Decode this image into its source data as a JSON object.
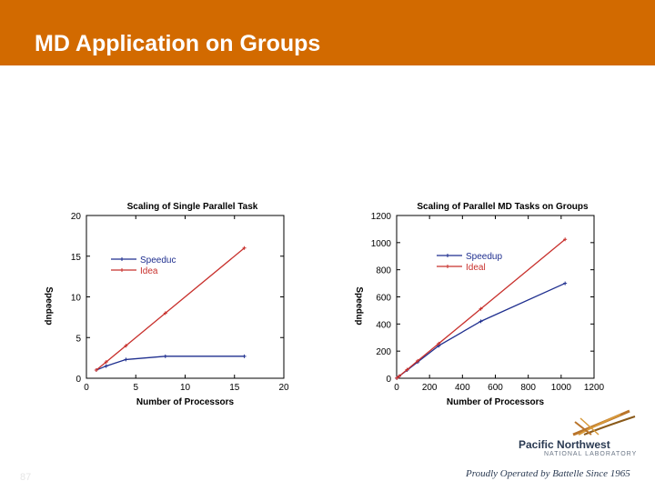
{
  "slide": {
    "title": "MD Application on Groups",
    "page_number": "87",
    "logo": {
      "name": "Pacific Northwest",
      "subtitle": "NATIONAL LABORATORY"
    },
    "tagline": "Proudly Operated by Battelle Since 1965"
  },
  "colors": {
    "header": "#d26a00",
    "speedup": "#1f2f8f",
    "ideal": "#c8302c"
  },
  "chart_data": [
    {
      "type": "line",
      "title": "Scaling of Single Parallel Task",
      "xlabel": "Number of Processors",
      "ylabel": "Speedup",
      "xlim": [
        0,
        20
      ],
      "ylim": [
        0,
        20
      ],
      "xticks": [
        0,
        5,
        10,
        15,
        20
      ],
      "yticks": [
        0,
        5,
        10,
        15,
        20
      ],
      "legend": "upper-left",
      "series": [
        {
          "name": "Speeduc",
          "color": "#1f2f8f",
          "x": [
            1,
            2,
            4,
            8,
            16
          ],
          "y": [
            1,
            1.5,
            2.3,
            2.7,
            2.7
          ]
        },
        {
          "name": "Idea",
          "color": "#c8302c",
          "x": [
            1,
            2,
            4,
            8,
            16
          ],
          "y": [
            1,
            2,
            4,
            8,
            16
          ]
        }
      ]
    },
    {
      "type": "line",
      "title": "Scaling of Parallel MD Tasks on Groups",
      "xlabel": "Number of Processors",
      "ylabel": "Speedup",
      "xlim": [
        0,
        1200
      ],
      "ylim": [
        0,
        1200
      ],
      "xticks": [
        0,
        200,
        400,
        600,
        800,
        1000,
        1200
      ],
      "yticks": [
        0,
        200,
        400,
        600,
        800,
        1000,
        1200
      ],
      "legend": "upper-center",
      "series": [
        {
          "name": "Speedup",
          "color": "#1f2f8f",
          "x": [
            1,
            16,
            64,
            128,
            256,
            512,
            1024
          ],
          "y": [
            1,
            16,
            60,
            120,
            240,
            420,
            700
          ]
        },
        {
          "name": "Ideal",
          "color": "#c8302c",
          "x": [
            1,
            16,
            64,
            128,
            256,
            512,
            1024
          ],
          "y": [
            1,
            16,
            64,
            128,
            256,
            512,
            1024
          ]
        }
      ]
    }
  ]
}
